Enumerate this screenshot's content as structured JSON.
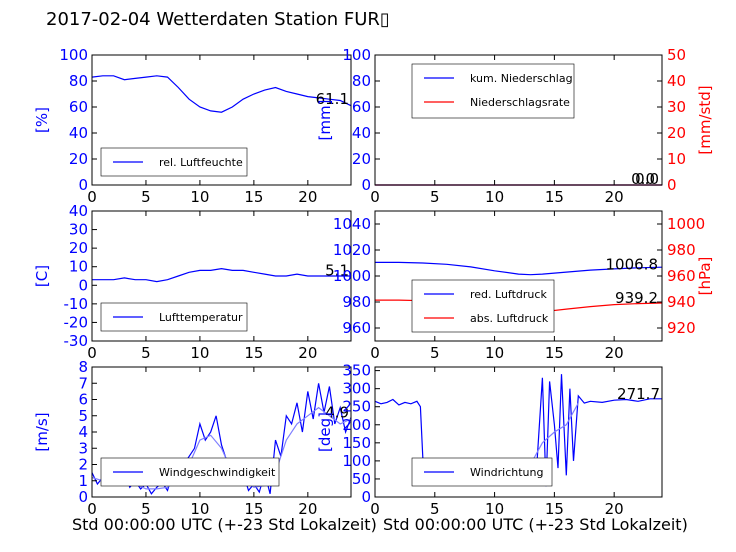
{
  "title": "2017-02-04 Wetterdaten Station FUR▯",
  "xlabel_left": "Std 00:00:00 UTC (+-23 Std Lokalzeit)",
  "xlabel_right": "Std 00:00:00 UTC (+-23 Std Lokalzeit)",
  "colors": {
    "primary": "#0000ff",
    "secondary": "#ff0000",
    "tertiary": "#7f7fff"
  },
  "chart_data": [
    {
      "id": "humidity",
      "type": "line",
      "ylabel": "[%]",
      "ylim": [
        0,
        100
      ],
      "yticks": [
        0,
        20,
        40,
        60,
        80,
        100
      ],
      "xlim": [
        0,
        24
      ],
      "xticks": [
        0,
        5,
        10,
        15,
        20
      ],
      "annotation": "61.1",
      "annotation_y": 66,
      "legend": [
        {
          "name": "rel. Luftfeuchte",
          "color": "#0000ff"
        }
      ],
      "series": [
        {
          "name": "rel. Luftfeuchte",
          "color": "#0000ff",
          "x": [
            0,
            1,
            2,
            3,
            4,
            5,
            6,
            7,
            8,
            9,
            10,
            11,
            12,
            13,
            14,
            15,
            16,
            17,
            18,
            19,
            20,
            21,
            22,
            23,
            24
          ],
          "y": [
            83,
            84,
            84,
            81,
            82,
            83,
            84,
            83,
            75,
            66,
            60,
            57,
            56,
            60,
            66,
            70,
            73,
            75,
            72,
            70,
            68,
            67,
            66,
            65,
            61
          ]
        }
      ]
    },
    {
      "id": "precip",
      "type": "line",
      "ylabel": "[mm]",
      "ylim": [
        0,
        100
      ],
      "yticks": [
        0,
        20,
        40,
        60,
        80,
        100
      ],
      "ylabel2": "[mm/std]",
      "ylim2": [
        0,
        50
      ],
      "yticks2": [
        0,
        10,
        20,
        30,
        40,
        50
      ],
      "xlim": [
        0,
        24
      ],
      "xticks": [
        0,
        5,
        10,
        15,
        20
      ],
      "annotations": [
        "0.0",
        "0.0"
      ],
      "legend": [
        {
          "name": "kum. Niederschlag",
          "color": "#0000ff"
        },
        {
          "name": "Niederschlagsrate",
          "color": "#ff0000"
        }
      ],
      "series": [
        {
          "name": "kum. Niederschlag",
          "color": "#0000ff",
          "x": [
            0,
            24
          ],
          "y": [
            0,
            0
          ]
        },
        {
          "name": "Niederschlagsrate",
          "color": "#ff0000",
          "axis": 2,
          "x": [
            0,
            24
          ],
          "y": [
            0,
            0
          ]
        }
      ]
    },
    {
      "id": "temperature",
      "type": "line",
      "ylabel": "[C]",
      "ylim": [
        -30,
        40
      ],
      "yticks": [
        -30,
        -20,
        -10,
        0,
        10,
        20,
        30,
        40
      ],
      "xlim": [
        0,
        24
      ],
      "xticks": [
        0,
        5,
        10,
        15,
        20
      ],
      "annotation": "5.1",
      "annotation_y": 8,
      "legend": [
        {
          "name": "Lufttemperatur",
          "color": "#0000ff"
        }
      ],
      "series": [
        {
          "name": "Lufttemperatur",
          "color": "#0000ff",
          "x": [
            0,
            1,
            2,
            3,
            4,
            5,
            6,
            7,
            8,
            9,
            10,
            11,
            12,
            13,
            14,
            15,
            16,
            17,
            18,
            19,
            20,
            21,
            22,
            23,
            24
          ],
          "y": [
            3,
            3,
            3,
            4,
            3,
            3,
            2,
            3,
            5,
            7,
            8,
            8,
            9,
            8,
            8,
            7,
            6,
            5,
            5,
            6,
            5,
            5,
            5,
            5,
            5
          ]
        }
      ]
    },
    {
      "id": "pressure",
      "type": "line",
      "ylabel2": "[hPa]",
      "ylim": [
        950,
        1050
      ],
      "yticks": [
        960,
        980,
        1000,
        1020,
        1040
      ],
      "ylim2": [
        910,
        1010
      ],
      "yticks2": [
        920,
        940,
        960,
        980,
        1000
      ],
      "xlim": [
        0,
        24
      ],
      "xticks": [
        0,
        5,
        10,
        15,
        20
      ],
      "annotations": [
        "1006.8",
        "939.2"
      ],
      "legend": [
        {
          "name": "red. Luftdruck",
          "color": "#0000ff"
        },
        {
          "name": "abs. Luftdruck",
          "color": "#ff0000"
        }
      ],
      "series": [
        {
          "name": "red. Luftdruck",
          "color": "#0000ff",
          "x": [
            0,
            2,
            4,
            6,
            8,
            10,
            12,
            13,
            14,
            16,
            18,
            20,
            22,
            24
          ],
          "y": [
            1010.5,
            1010.5,
            1010,
            1009,
            1007,
            1004,
            1001.5,
            1001,
            1001.5,
            1003,
            1004.5,
            1005.5,
            1006.3,
            1006.8
          ]
        },
        {
          "name": "abs. Luftdruck",
          "color": "#ff0000",
          "axis": 2,
          "x": [
            0,
            2,
            4,
            6,
            8,
            10,
            12,
            13,
            14,
            16,
            18,
            20,
            22,
            24
          ],
          "y": [
            941.5,
            941.5,
            941,
            940,
            938,
            935,
            932.5,
            932,
            932.5,
            934.5,
            936.5,
            938,
            938.8,
            939.2
          ]
        }
      ]
    },
    {
      "id": "wind-speed",
      "type": "line",
      "ylabel": "[m/s]",
      "ylim": [
        0,
        8
      ],
      "yticks": [
        0,
        1,
        2,
        3,
        4,
        5,
        6,
        7,
        8
      ],
      "xlim": [
        0,
        24
      ],
      "xticks": [
        0,
        5,
        10,
        15,
        20
      ],
      "annotation": "4.9",
      "annotation_y": 5.2,
      "legend": [
        {
          "name": "Windgeschwindigkeit",
          "color": "#0000ff"
        }
      ],
      "series": [
        {
          "name": "Windgeschwindigkeit",
          "color": "#0000ff",
          "x": [
            0,
            0.5,
            1,
            1.5,
            2,
            2.5,
            3,
            3.5,
            4,
            4.5,
            5,
            5.5,
            6,
            6.5,
            7,
            7.5,
            8,
            8.5,
            9,
            9.5,
            10,
            10.5,
            11,
            11.5,
            12,
            12.5,
            13,
            13.5,
            14,
            14.5,
            15,
            15.5,
            16,
            16.5,
            17,
            17.5,
            18,
            18.5,
            19,
            19.5,
            20,
            20.5,
            21,
            21.5,
            22,
            22.5,
            23,
            23.5,
            24
          ],
          "y": [
            1.5,
            0.8,
            1.2,
            1.8,
            1.0,
            2.2,
            1.5,
            0.6,
            1.0,
            0.5,
            0.8,
            0.2,
            0.6,
            0.9,
            0.4,
            1.5,
            1.0,
            2.0,
            2.5,
            3.0,
            4.5,
            3.5,
            4.0,
            5.0,
            3.2,
            2.2,
            1.2,
            0.8,
            1.5,
            0.4,
            0.8,
            0.3,
            1.5,
            0.2,
            3.5,
            2.5,
            5.0,
            4.5,
            5.8,
            4.0,
            6.5,
            4.8,
            7.0,
            5.2,
            6.8,
            4.5,
            5.5,
            4.0,
            4.9
          ]
        },
        {
          "name": "",
          "color": "#7f7fff",
          "x": [
            0,
            1,
            2,
            3,
            4,
            5,
            6,
            7,
            8,
            9,
            10,
            11,
            12,
            13,
            14,
            15,
            16,
            17,
            18,
            19,
            20,
            21,
            22,
            23,
            24
          ],
          "y": [
            1.2,
            1.0,
            1.2,
            1.0,
            0.8,
            0.5,
            0.5,
            0.6,
            1.2,
            2.0,
            3.5,
            3.8,
            3.0,
            1.5,
            1.0,
            0.6,
            0.7,
            1.5,
            3.5,
            4.5,
            5.0,
            5.5,
            5.0,
            4.5,
            4.8
          ]
        }
      ]
    },
    {
      "id": "wind-direction",
      "type": "line",
      "ylabel": "[deg]",
      "ylim": [
        0,
        360
      ],
      "yticks": [
        0,
        50,
        100,
        150,
        200,
        250,
        300,
        350
      ],
      "xlim": [
        0,
        24
      ],
      "xticks": [
        0,
        5,
        10,
        15,
        20
      ],
      "annotation": "271.7",
      "annotation_y": 285,
      "legend": [
        {
          "name": "Windrichtung",
          "color": "#0000ff"
        }
      ],
      "series": [
        {
          "name": "Windrichtung",
          "color": "#0000ff",
          "x": [
            0,
            0.5,
            1,
            1.5,
            2,
            2.5,
            3,
            3.5,
            3.8,
            4.0,
            4.2,
            4.5,
            5,
            5.5,
            6,
            6.5,
            7,
            8,
            9,
            10,
            11,
            12,
            13,
            13.5,
            14,
            14.3,
            14.6,
            15,
            15.3,
            15.6,
            16,
            16.3,
            16.6,
            17,
            17.5,
            18,
            19,
            20,
            21,
            22,
            23,
            24
          ],
          "y": [
            265,
            258,
            262,
            270,
            255,
            262,
            258,
            265,
            250,
            110,
            60,
            90,
            100,
            70,
            80,
            60,
            75,
            70,
            95,
            80,
            90,
            85,
            100,
            70,
            330,
            30,
            320,
            200,
            80,
            340,
            60,
            300,
            100,
            280,
            260,
            265,
            262,
            268,
            270,
            265,
            272,
            272
          ]
        },
        {
          "name": "",
          "color": "#7f7fff",
          "x": [
            4,
            5,
            6,
            7,
            8,
            9,
            10,
            11,
            12,
            13,
            14,
            15,
            16,
            17
          ],
          "y": [
            80,
            85,
            90,
            80,
            85,
            95,
            90,
            100,
            95,
            90,
            150,
            180,
            200,
            260
          ]
        }
      ]
    }
  ]
}
